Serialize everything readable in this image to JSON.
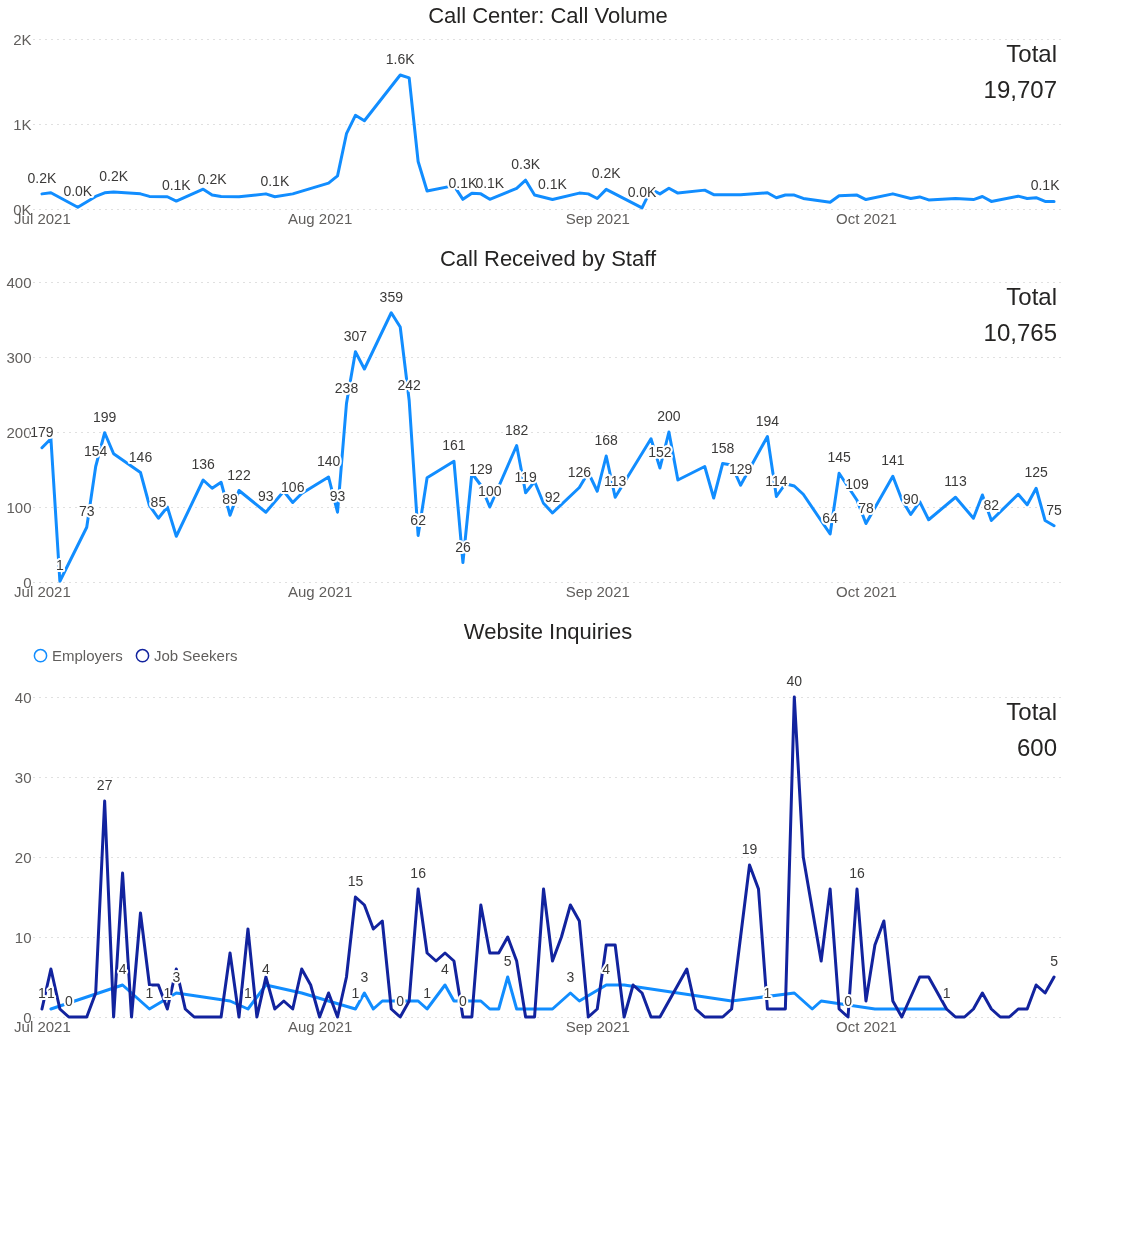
{
  "chart_data": [
    {
      "type": "line",
      "title": "Call Center: Call Volume",
      "annotations": [
        "Total",
        "19,707"
      ],
      "grid": "y",
      "line_style": "solid",
      "xlim": [
        "2021-06-30",
        "2021-10-23"
      ],
      "xticks": [
        {
          "value": "2021-07-01",
          "label": "Jul 2021"
        },
        {
          "value": "2021-08-01",
          "label": "Aug 2021"
        },
        {
          "value": "2021-09-01",
          "label": "Sep 2021"
        },
        {
          "value": "2021-10-01",
          "label": "Oct 2021"
        }
      ],
      "ylim": [
        0,
        2000
      ],
      "yticks": [
        {
          "value": 0,
          "label": "0K"
        },
        {
          "value": 1000,
          "label": "1K"
        },
        {
          "value": 2000,
          "label": "2K"
        }
      ],
      "x": [
        "2021-07-01",
        "2021-07-02",
        "2021-07-05",
        "2021-07-07",
        "2021-07-08",
        "2021-07-09",
        "2021-07-12",
        "2021-07-13",
        "2021-07-15",
        "2021-07-16",
        "2021-07-19",
        "2021-07-20",
        "2021-07-21",
        "2021-07-23",
        "2021-07-26",
        "2021-07-27",
        "2021-07-29",
        "2021-08-02",
        "2021-08-03",
        "2021-08-04",
        "2021-08-05",
        "2021-08-06",
        "2021-08-10",
        "2021-08-11",
        "2021-08-12",
        "2021-08-13",
        "2021-08-16",
        "2021-08-17",
        "2021-08-18",
        "2021-08-19",
        "2021-08-20",
        "2021-08-23",
        "2021-08-24",
        "2021-08-25",
        "2021-08-27",
        "2021-08-30",
        "2021-08-31",
        "2021-09-01",
        "2021-09-02",
        "2021-09-06",
        "2021-09-07",
        "2021-09-08",
        "2021-09-09",
        "2021-09-10",
        "2021-09-13",
        "2021-09-14",
        "2021-09-17",
        "2021-09-20",
        "2021-09-21",
        "2021-09-22",
        "2021-09-23",
        "2021-09-24",
        "2021-09-27",
        "2021-09-28",
        "2021-09-30",
        "2021-10-01",
        "2021-10-04",
        "2021-10-06",
        "2021-10-07",
        "2021-10-08",
        "2021-10-11",
        "2021-10-13",
        "2021-10-14",
        "2021-10-15",
        "2021-10-18",
        "2021-10-19",
        "2021-10-20",
        "2021-10-21",
        "2021-10-22"
      ],
      "series": [
        {
          "color": "#118dff",
          "values": [
            178,
            191,
            21,
            148,
            191,
            199,
            178,
            148,
            144,
            93,
            233,
            165,
            148,
            144,
            178,
            144,
            178,
            305,
            390,
            886,
            1102,
            1038,
            1576,
            1542,
            559,
            212,
            275,
            114,
            186,
            178,
            114,
            242,
            339,
            165,
            111,
            187,
            178,
            124,
            231,
            13,
            231,
            178,
            244,
            187,
            222,
            169,
            169,
            191,
            133,
            164,
            164,
            124,
            80,
            156,
            164,
            111,
            178,
            124,
            142,
            107,
            124,
            111,
            147,
            89,
            151,
            124,
            133,
            89,
            89
          ],
          "value_labels": [
            "0.2K",
            null,
            "0.0K",
            null,
            null,
            "0.2K",
            null,
            null,
            null,
            "0.1K",
            null,
            "0.2K",
            null,
            null,
            null,
            "0.1K",
            null,
            null,
            null,
            null,
            null,
            null,
            "1.6K",
            null,
            null,
            null,
            null,
            "0.1K",
            null,
            null,
            "0.1K",
            null,
            "0.3K",
            null,
            "0.1K",
            null,
            null,
            null,
            "0.2K",
            "0.0K",
            null,
            null,
            null,
            null,
            null,
            null,
            null,
            null,
            null,
            null,
            null,
            null,
            null,
            null,
            null,
            null,
            null,
            null,
            null,
            null,
            null,
            null,
            null,
            null,
            null,
            null,
            null,
            "0.1K",
            null
          ]
        }
      ]
    },
    {
      "type": "line",
      "title": "Call Received by Staff",
      "annotations": [
        "Total",
        "10,765"
      ],
      "grid": "y",
      "line_style": "solid",
      "xlim": [
        "2021-06-30",
        "2021-10-23"
      ],
      "xticks": [
        {
          "value": "2021-07-01",
          "label": "Jul 2021"
        },
        {
          "value": "2021-08-01",
          "label": "Aug 2021"
        },
        {
          "value": "2021-09-01",
          "label": "Sep 2021"
        },
        {
          "value": "2021-10-01",
          "label": "Oct 2021"
        }
      ],
      "ylim": [
        0,
        400
      ],
      "yticks": [
        0,
        100,
        200,
        300,
        400
      ],
      "x": [
        "2021-07-01",
        "2021-07-02",
        "2021-07-03",
        "2021-07-06",
        "2021-07-07",
        "2021-07-08",
        "2021-07-09",
        "2021-07-12",
        "2021-07-13",
        "2021-07-14",
        "2021-07-15",
        "2021-07-16",
        "2021-07-19",
        "2021-07-20",
        "2021-07-21",
        "2021-07-22",
        "2021-07-23",
        "2021-07-26",
        "2021-07-28",
        "2021-07-29",
        "2021-07-30",
        "2021-08-02",
        "2021-08-03",
        "2021-08-04",
        "2021-08-05",
        "2021-08-06",
        "2021-08-09",
        "2021-08-10",
        "2021-08-11",
        "2021-08-12",
        "2021-08-13",
        "2021-08-16",
        "2021-08-17",
        "2021-08-18",
        "2021-08-19",
        "2021-08-20",
        "2021-08-23",
        "2021-08-24",
        "2021-08-25",
        "2021-08-26",
        "2021-08-27",
        "2021-08-30",
        "2021-08-31",
        "2021-09-01",
        "2021-09-02",
        "2021-09-03",
        "2021-09-07",
        "2021-09-08",
        "2021-09-09",
        "2021-09-10",
        "2021-09-13",
        "2021-09-14",
        "2021-09-15",
        "2021-09-16",
        "2021-09-17",
        "2021-09-20",
        "2021-09-21",
        "2021-09-22",
        "2021-09-23",
        "2021-09-24",
        "2021-09-27",
        "2021-09-28",
        "2021-09-30",
        "2021-10-01",
        "2021-10-04",
        "2021-10-05",
        "2021-10-06",
        "2021-10-07",
        "2021-10-08",
        "2021-10-11",
        "2021-10-13",
        "2021-10-14",
        "2021-10-15",
        "2021-10-18",
        "2021-10-19",
        "2021-10-20",
        "2021-10-21",
        "2021-10-22"
      ],
      "series": [
        {
          "color": "#118dff",
          "values": [
            179,
            191,
            1,
            73,
            154,
            199,
            171,
            146,
            102,
            85,
            100,
            61,
            136,
            125,
            133,
            89,
            122,
            93,
            121,
            106,
            118,
            140,
            93,
            238,
            307,
            284,
            359,
            340,
            242,
            62,
            139,
            161,
            26,
            145,
            129,
            100,
            182,
            119,
            134,
            105,
            92,
            126,
            146,
            121,
            168,
            113,
            191,
            152,
            200,
            136,
            154,
            112,
            158,
            156,
            129,
            194,
            114,
            131,
            128,
            117,
            64,
            145,
            109,
            78,
            141,
            110,
            90,
            107,
            83,
            113,
            85,
            116,
            82,
            117,
            103,
            125,
            82,
            75
          ],
          "value_labels": [
            "179",
            null,
            "1",
            "73",
            "154",
            "199",
            null,
            "146",
            null,
            "85",
            null,
            null,
            "136",
            null,
            null,
            "89",
            "122",
            "93",
            null,
            "106",
            null,
            "140",
            "93",
            "238",
            "307",
            null,
            "359",
            null,
            "242",
            "62",
            null,
            "161",
            "26",
            null,
            "129",
            "100",
            "182",
            "119",
            null,
            null,
            "92",
            "126",
            null,
            null,
            "168",
            "113",
            null,
            "152",
            "200",
            null,
            null,
            null,
            "158",
            null,
            "129",
            "194",
            "114",
            null,
            null,
            null,
            "64",
            "145",
            "109",
            "78",
            "141",
            null,
            "90",
            null,
            null,
            "113",
            null,
            null,
            "82",
            null,
            null,
            "125",
            null,
            "75"
          ]
        }
      ]
    },
    {
      "type": "line",
      "title": "Website Inquiries",
      "annotations": [
        "Total",
        "600"
      ],
      "grid": "y",
      "line_style": "solid",
      "legend": "top left",
      "xlim": [
        "2021-06-30",
        "2021-10-23"
      ],
      "xticks": [
        {
          "value": "2021-07-01",
          "label": "Jul 2021"
        },
        {
          "value": "2021-08-01",
          "label": "Aug 2021"
        },
        {
          "value": "2021-09-01",
          "label": "Sep 2021"
        },
        {
          "value": "2021-10-01",
          "label": "Oct 2021"
        }
      ],
      "ylim": [
        0,
        40
      ],
      "yticks": [
        0,
        10,
        20,
        30,
        40
      ],
      "series": [
        {
          "name": "Employers",
          "color": "#118dff",
          "x": [
            "2021-07-02",
            "2021-07-10",
            "2021-07-13",
            "2021-07-16",
            "2021-07-22",
            "2021-07-24",
            "2021-07-26",
            "2021-07-30",
            "2021-08-05",
            "2021-08-06",
            "2021-08-07",
            "2021-08-08",
            "2021-08-12",
            "2021-08-13",
            "2021-08-15",
            "2021-08-16",
            "2021-08-19",
            "2021-08-20",
            "2021-08-21",
            "2021-08-22",
            "2021-08-23",
            "2021-08-25",
            "2021-08-27",
            "2021-08-29",
            "2021-08-30",
            "2021-09-02",
            "2021-09-04",
            "2021-09-16",
            "2021-09-23",
            "2021-09-25",
            "2021-09-26",
            "2021-10-02",
            "2021-10-10"
          ],
          "values": [
            1,
            4,
            1,
            3,
            2,
            1,
            4,
            3,
            1,
            3,
            1,
            2,
            2,
            1,
            4,
            2,
            2,
            1,
            1,
            5,
            1,
            1,
            1,
            3,
            2,
            4,
            4,
            2,
            3,
            1,
            2,
            1,
            1
          ],
          "value_labels": [
            "1",
            "4",
            "1",
            "3",
            null,
            "1",
            "4",
            null,
            "1",
            "3",
            null,
            null,
            null,
            "1",
            "4",
            null,
            null,
            null,
            null,
            "5",
            null,
            null,
            null,
            "3",
            null,
            "4",
            null,
            null,
            null,
            null,
            null,
            null,
            "1"
          ]
        },
        {
          "name": "Job Seekers",
          "color": "#12239e",
          "x": [
            "2021-07-01",
            "2021-07-02",
            "2021-07-03",
            "2021-07-04",
            "2021-07-06",
            "2021-07-07",
            "2021-07-08",
            "2021-07-09",
            "2021-07-10",
            "2021-07-11",
            "2021-07-12",
            "2021-07-13",
            "2021-07-14",
            "2021-07-15",
            "2021-07-16",
            "2021-07-17",
            "2021-07-18",
            "2021-07-21",
            "2021-07-22",
            "2021-07-23",
            "2021-07-24",
            "2021-07-25",
            "2021-07-26",
            "2021-07-27",
            "2021-07-28",
            "2021-07-29",
            "2021-07-30",
            "2021-07-31",
            "2021-08-01",
            "2021-08-02",
            "2021-08-03",
            "2021-08-04",
            "2021-08-05",
            "2021-08-06",
            "2021-08-07",
            "2021-08-08",
            "2021-08-09",
            "2021-08-10",
            "2021-08-11",
            "2021-08-12",
            "2021-08-13",
            "2021-08-14",
            "2021-08-15",
            "2021-08-16",
            "2021-08-17",
            "2021-08-18",
            "2021-08-19",
            "2021-08-20",
            "2021-08-21",
            "2021-08-22",
            "2021-08-23",
            "2021-08-24",
            "2021-08-25",
            "2021-08-26",
            "2021-08-27",
            "2021-08-28",
            "2021-08-29",
            "2021-08-30",
            "2021-08-31",
            "2021-09-01",
            "2021-09-02",
            "2021-09-03",
            "2021-09-04",
            "2021-09-05",
            "2021-09-06",
            "2021-09-07",
            "2021-09-08",
            "2021-09-11",
            "2021-09-12",
            "2021-09-13",
            "2021-09-15",
            "2021-09-16",
            "2021-09-18",
            "2021-09-19",
            "2021-09-20",
            "2021-09-22",
            "2021-09-23",
            "2021-09-24",
            "2021-09-26",
            "2021-09-27",
            "2021-09-28",
            "2021-09-29",
            "2021-09-30",
            "2021-10-01",
            "2021-10-02",
            "2021-10-03",
            "2021-10-04",
            "2021-10-05",
            "2021-10-07",
            "2021-10-08",
            "2021-10-10",
            "2021-10-11",
            "2021-10-12",
            "2021-10-13",
            "2021-10-14",
            "2021-10-15",
            "2021-10-16",
            "2021-10-17",
            "2021-10-18",
            "2021-10-19",
            "2021-10-20",
            "2021-10-21",
            "2021-10-22"
          ],
          "values": [
            1,
            6,
            1,
            0,
            0,
            3,
            27,
            0,
            18,
            0,
            13,
            4,
            4,
            1,
            6,
            1,
            0,
            0,
            8,
            0,
            11,
            0,
            5,
            1,
            2,
            1,
            6,
            4,
            0,
            3,
            0,
            5,
            15,
            14,
            11,
            12,
            1,
            0,
            2,
            16,
            8,
            7,
            8,
            7,
            0,
            0,
            14,
            8,
            8,
            10,
            7,
            0,
            0,
            16,
            7,
            10,
            14,
            12,
            0,
            1,
            9,
            9,
            0,
            4,
            3,
            0,
            0,
            6,
            1,
            0,
            0,
            1,
            19,
            16,
            1,
            1,
            40,
            20,
            7,
            16,
            1,
            0,
            16,
            2,
            9,
            12,
            2,
            0,
            5,
            5,
            1,
            0,
            0,
            1,
            3,
            1,
            0,
            0,
            1,
            1,
            4,
            3,
            5
          ],
          "value_labels": [
            "1",
            null,
            null,
            "0",
            null,
            null,
            "27",
            null,
            null,
            null,
            null,
            null,
            null,
            "1",
            null,
            null,
            null,
            null,
            null,
            null,
            null,
            null,
            null,
            null,
            null,
            null,
            null,
            null,
            null,
            null,
            null,
            null,
            "15",
            null,
            null,
            null,
            null,
            "0",
            null,
            "16",
            null,
            null,
            null,
            null,
            "0",
            null,
            null,
            null,
            null,
            null,
            null,
            null,
            null,
            null,
            null,
            null,
            null,
            null,
            null,
            null,
            null,
            null,
            null,
            null,
            null,
            null,
            null,
            null,
            null,
            null,
            null,
            null,
            "19",
            null,
            "1",
            null,
            "40",
            null,
            null,
            null,
            null,
            "0",
            "16",
            null,
            null,
            null,
            null,
            null,
            null,
            null,
            null,
            null,
            null,
            null,
            null,
            null,
            null,
            null,
            null,
            null,
            null,
            null,
            "5"
          ]
        }
      ]
    }
  ]
}
